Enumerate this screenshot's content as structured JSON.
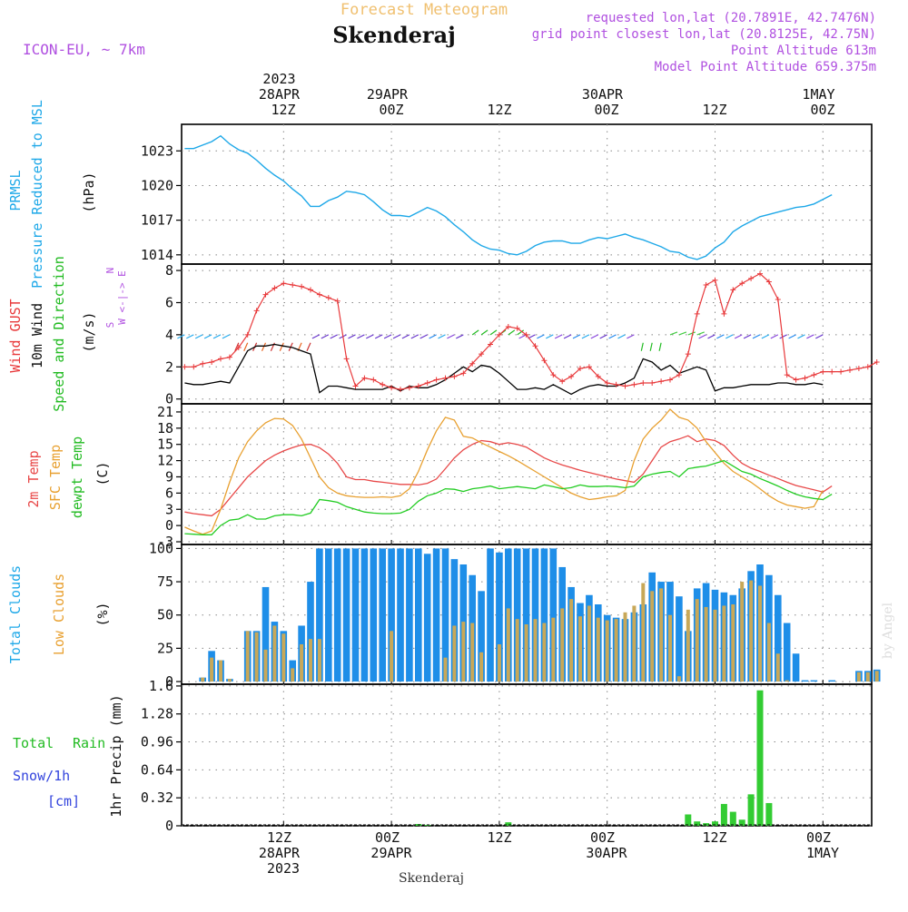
{
  "header": {
    "product": "Forecast Meteogram",
    "location": "Skenderaj",
    "model": "ICON-EU, ~ 7km",
    "requested": "requested lon,lat (20.7891E, 42.7476N)",
    "gridpoint": "grid point closest lon,lat (20.8125E, 42.75N)",
    "point_alt": "Point Altitude 613m",
    "model_alt": "Model Point Altitude 659.375m"
  },
  "time_axis": {
    "top": [
      {
        "lines": [
          "2023",
          "28APR",
          "12Z"
        ],
        "hour": 12
      },
      {
        "lines": [
          "29APR",
          "00Z"
        ],
        "hour": 24
      },
      {
        "lines": [
          "12Z"
        ],
        "hour": 36
      },
      {
        "lines": [
          "30APR",
          "00Z"
        ],
        "hour": 48
      },
      {
        "lines": [
          "12Z"
        ],
        "hour": 60
      },
      {
        "lines": [
          "1MAY",
          "00Z"
        ],
        "hour": 72
      }
    ],
    "bottom": [
      {
        "lines": [
          "12Z",
          "28APR",
          "2023"
        ],
        "hour": 12
      },
      {
        "lines": [
          "00Z",
          "29APR"
        ],
        "hour": 24
      },
      {
        "lines": [
          "12Z"
        ],
        "hour": 36
      },
      {
        "lines": [
          "00Z",
          "30APR"
        ],
        "hour": 48
      },
      {
        "lines": [
          "12Z"
        ],
        "hour": 60
      },
      {
        "lines": [
          "00Z",
          "1MAY"
        ],
        "hour": 72
      }
    ],
    "footer": "Skenderaj",
    "credit": "by Angel"
  },
  "panel_labels": {
    "pressure": {
      "a": "PRMSL",
      "b": "Pressure Reduced to MSL",
      "unit": "(hPa)"
    },
    "wind": {
      "a": "Wind GUST",
      "b": "10m Wind",
      "c": "Speed and Direction",
      "unit": "(m/s)",
      "compass_ns": "N",
      "compass_ew": "W <-|-> E",
      "compass_s": "S"
    },
    "temp": {
      "a": "2m Temp",
      "b": "SFC Temp",
      "c": "dewpt Temp",
      "unit": "(C)"
    },
    "clouds": {
      "a": "Total Clouds",
      "b": "Low Clouds",
      "unit": "(%)"
    },
    "precip": {
      "a": "Total",
      "a2": "Rain",
      "b": "Snow/1h",
      "c": "[cm]",
      "unit": "1hr Precip (mm)"
    }
  },
  "colors": {
    "pressure": "#1ea8e8",
    "gust": "#e8383a",
    "wind": "#000000",
    "t2m": "#e84848",
    "sfc": "#e8a030",
    "dew": "#22cc22",
    "total_cloud": "#1e8ee8",
    "low_cloud": "#c8a858",
    "rain": "#33cc33",
    "snow": "#3344dd",
    "title": "#f0c070",
    "meta": "#b050e0",
    "grid": "#888888"
  },
  "chart_data": [
    {
      "type": "line",
      "id": "pressure",
      "ylabel": "(hPa)",
      "ylim": [
        1013.2,
        1025.3
      ],
      "yticks": [
        1014,
        1017,
        1020,
        1023
      ],
      "x_hours_start": 1,
      "series": [
        {
          "name": "PRMSL",
          "values": [
            1023.2,
            1023.2,
            1023.5,
            1023.8,
            1024.3,
            1023.6,
            1023.1,
            1022.8,
            1022.2,
            1021.5,
            1020.9,
            1020.4,
            1019.7,
            1019.1,
            1018.2,
            1018.2,
            1018.7,
            1019.0,
            1019.5,
            1019.4,
            1019.2,
            1018.6,
            1017.9,
            1017.4,
            1017.4,
            1017.3,
            1017.7,
            1018.1,
            1017.8,
            1017.3,
            1016.6,
            1016.0,
            1015.3,
            1014.8,
            1014.5,
            1014.4,
            1014.1,
            1014.0,
            1014.3,
            1014.8,
            1015.1,
            1015.2,
            1015.2,
            1015.0,
            1015.0,
            1015.3,
            1015.5,
            1015.4,
            1015.6,
            1015.8,
            1015.5,
            1015.3,
            1015.0,
            1014.7,
            1014.3,
            1014.2,
            1013.8,
            1013.6,
            1013.9,
            1014.6,
            1015.1,
            1016.0,
            1016.5,
            1016.9,
            1017.3,
            1017.5,
            1017.7,
            1017.9,
            1018.1,
            1018.2,
            1018.4,
            1018.8,
            1019.2
          ]
        }
      ]
    },
    {
      "type": "line",
      "id": "wind",
      "ylabel": "(m/s)",
      "ylim": [
        -0.3,
        8.4
      ],
      "yticks": [
        0,
        2,
        4,
        6,
        8
      ],
      "x_hours_start": 1,
      "series": [
        {
          "name": "Wind GUST",
          "values": [
            2.0,
            2.0,
            2.2,
            2.3,
            2.5,
            2.6,
            3.2,
            4.0,
            5.5,
            6.5,
            6.9,
            7.2,
            7.1,
            7.0,
            6.8,
            6.5,
            6.3,
            6.1,
            2.5,
            0.8,
            1.3,
            1.2,
            0.9,
            0.7,
            0.6,
            0.7,
            0.8,
            1.0,
            1.2,
            1.3,
            1.4,
            1.6,
            2.2,
            2.8,
            3.4,
            4.0,
            4.5,
            4.4,
            4.0,
            3.3,
            2.4,
            1.5,
            1.1,
            1.4,
            1.9,
            2.0,
            1.4,
            1.0,
            0.9,
            0.8,
            0.9,
            1.0,
            1.0,
            1.1,
            1.2,
            1.5,
            2.8,
            5.3,
            7.1,
            7.4,
            5.3,
            6.8,
            7.2,
            7.5,
            7.8,
            7.3,
            6.2,
            1.5,
            1.2,
            1.3,
            1.5,
            1.7,
            1.7,
            1.7,
            1.8,
            1.9,
            2.0,
            2.3
          ]
        },
        {
          "name": "10m Wind",
          "values": [
            1.0,
            0.9,
            0.9,
            1.0,
            1.1,
            1.0,
            2.0,
            3.0,
            3.3,
            3.3,
            3.4,
            3.3,
            3.2,
            3.0,
            2.8,
            0.4,
            0.8,
            0.8,
            0.7,
            0.6,
            0.6,
            0.6,
            0.6,
            0.8,
            0.5,
            0.8,
            0.7,
            0.7,
            0.9,
            1.2,
            1.6,
            2.0,
            1.7,
            2.1,
            2.0,
            1.6,
            1.1,
            0.6,
            0.6,
            0.7,
            0.6,
            0.9,
            0.6,
            0.3,
            0.6,
            0.8,
            0.9,
            0.8,
            0.8,
            1.0,
            1.3,
            2.5,
            2.3,
            1.8,
            2.1,
            1.6,
            1.8,
            2.0,
            1.8,
            0.5,
            0.7,
            0.7,
            0.8,
            0.9,
            0.9,
            0.9,
            1.0,
            1.0,
            0.9,
            0.9,
            1.0,
            0.9
          ]
        },
        {
          "name": "Speed and Direction",
          "values": [
            4,
            4,
            4,
            4,
            4,
            4,
            3.5,
            3.5,
            3.5,
            3.5,
            3.5,
            3.5,
            3.5,
            3.5,
            3.5,
            4,
            4,
            4,
            4,
            4,
            4,
            4,
            4,
            4,
            4,
            4,
            4,
            4,
            4,
            4,
            4,
            4,
            4,
            4,
            4,
            4,
            4,
            4,
            4,
            4,
            4,
            4,
            4,
            4,
            4,
            4,
            4,
            4,
            4,
            4,
            4,
            3.5,
            3.5,
            3.5,
            4,
            4,
            4,
            4,
            4,
            4,
            4,
            4,
            4,
            4,
            4,
            4,
            4,
            4,
            4,
            4,
            4,
            4
          ]
        }
      ]
    },
    {
      "type": "line",
      "id": "temperature",
      "ylabel": "(C)",
      "ylim": [
        -3.5,
        22.5
      ],
      "yticks": [
        -3,
        0,
        3,
        6,
        9,
        12,
        15,
        18,
        21
      ],
      "x_hours_start": 1,
      "series": [
        {
          "name": "2m Temp",
          "values": [
            2.5,
            2.2,
            2.0,
            1.8,
            3.0,
            5.0,
            7.0,
            9.0,
            10.5,
            12.0,
            13.0,
            13.8,
            14.4,
            14.9,
            15.0,
            14.4,
            13.2,
            11.5,
            9.0,
            8.5,
            8.5,
            8.2,
            8.0,
            7.8,
            7.6,
            7.6,
            7.5,
            7.8,
            8.6,
            10.5,
            12.5,
            14.0,
            15.0,
            15.7,
            15.5,
            15.0,
            15.3,
            15.0,
            14.5,
            13.5,
            12.5,
            11.8,
            11.2,
            10.7,
            10.2,
            9.8,
            9.4,
            9.0,
            8.6,
            8.3,
            8.0,
            9.5,
            12.0,
            14.5,
            15.5,
            16.0,
            16.6,
            15.5,
            16.0,
            15.7,
            14.8,
            13.0,
            11.5,
            10.6,
            10.0,
            9.3,
            8.7,
            8.0,
            7.4,
            7.0,
            6.6,
            6.2,
            7.3
          ]
        },
        {
          "name": "SFC Temp",
          "values": [
            -0.3,
            -1.0,
            -1.6,
            -1.0,
            3.0,
            8.0,
            12.5,
            15.5,
            17.5,
            19.0,
            19.8,
            19.7,
            18.5,
            16.0,
            12.5,
            9.0,
            7.0,
            6.0,
            5.5,
            5.3,
            5.2,
            5.2,
            5.3,
            5.2,
            5.5,
            6.8,
            10.0,
            14.0,
            17.5,
            20.0,
            19.5,
            16.5,
            16.2,
            15.3,
            14.5,
            13.7,
            12.9,
            12.0,
            11.0,
            10.0,
            9.0,
            8.0,
            7.0,
            6.0,
            5.3,
            4.8,
            5.0,
            5.3,
            5.5,
            6.5,
            12.0,
            16.0,
            18.0,
            19.5,
            21.5,
            20.0,
            19.5,
            18.0,
            15.5,
            13.5,
            11.5,
            10.0,
            9.0,
            8.0,
            6.8,
            5.5,
            4.5,
            3.8,
            3.5,
            3.2,
            3.5,
            6.5
          ]
        },
        {
          "name": "dewpt Temp",
          "values": [
            -1.5,
            -1.6,
            -1.7,
            -1.7,
            0,
            1.0,
            1.2,
            2.0,
            1.2,
            1.2,
            1.8,
            2.0,
            2.0,
            1.8,
            2.3,
            4.8,
            4.6,
            4.3,
            3.5,
            3.0,
            2.5,
            2.3,
            2.2,
            2.2,
            2.3,
            3.0,
            4.5,
            5.5,
            6.0,
            6.8,
            6.7,
            6.3,
            6.8,
            7.0,
            7.3,
            6.8,
            7.0,
            7.2,
            7.0,
            6.8,
            7.5,
            7.2,
            6.8,
            7.0,
            7.5,
            7.2,
            7.2,
            7.3,
            7.2,
            7.0,
            7.3,
            9.0,
            9.5,
            9.8,
            10.0,
            9.0,
            10.5,
            10.8,
            11.0,
            11.5,
            12.0,
            11.0,
            10.0,
            9.5,
            8.7,
            8.0,
            7.3,
            6.5,
            5.8,
            5.3,
            5.0,
            4.8,
            5.8
          ]
        }
      ]
    },
    {
      "type": "bar",
      "id": "clouds",
      "ylabel": "(%)",
      "ylim": [
        -2,
        103
      ],
      "yticks": [
        0,
        25,
        50,
        75,
        100
      ],
      "x_hours_start": 1,
      "series": [
        {
          "name": "Total Clouds",
          "values": [
            0,
            0,
            3,
            23,
            16,
            2,
            0,
            38,
            38,
            71,
            45,
            38,
            16,
            42,
            75,
            100,
            100,
            100,
            100,
            100,
            100,
            100,
            100,
            100,
            100,
            100,
            100,
            96,
            100,
            100,
            92,
            88,
            80,
            68,
            100,
            97,
            100,
            100,
            100,
            100,
            100,
            100,
            86,
            71,
            59,
            65,
            58,
            50,
            48,
            47,
            52,
            58,
            82,
            75,
            75,
            64,
            38,
            70,
            74,
            69,
            67,
            65,
            70,
            83,
            88,
            80,
            65,
            44,
            21,
            1,
            1,
            0,
            1,
            0,
            0,
            8,
            8,
            9
          ]
        },
        {
          "name": "Low Clouds",
          "values": [
            0,
            0,
            3,
            18,
            16,
            2,
            0,
            38,
            37,
            24,
            42,
            36,
            10,
            28,
            32,
            32,
            0,
            0,
            0,
            0,
            0,
            0,
            0,
            38,
            0,
            0,
            0,
            0,
            0,
            18,
            42,
            45,
            44,
            22,
            0,
            28,
            55,
            47,
            43,
            47,
            44,
            48,
            55,
            62,
            49,
            57,
            48,
            46,
            47,
            52,
            57,
            74,
            68,
            70,
            50,
            4,
            54,
            62,
            56,
            54,
            57,
            58,
            75,
            76,
            72,
            44,
            21,
            1,
            0,
            0,
            0,
            0,
            0,
            0,
            0,
            7,
            7,
            8
          ]
        }
      ]
    },
    {
      "type": "bar",
      "id": "precipitation",
      "ylabel": "1hr Precip (mm)",
      "ylim": [
        0,
        1.62
      ],
      "yticks": [
        0,
        0.32,
        0.64,
        0.96,
        1.28,
        1.6
      ],
      "x_hours_start": 1,
      "series": [
        {
          "name": "Total Rain",
          "values": [
            0,
            0,
            0,
            0,
            0,
            0,
            0,
            0,
            0,
            0,
            0,
            0,
            0,
            0,
            0,
            0,
            0,
            0,
            0,
            0,
            0,
            0,
            0,
            0,
            0,
            0,
            0.02,
            0.01,
            0,
            0,
            0,
            0,
            0,
            0,
            0,
            0,
            0.04,
            0,
            0,
            0,
            0,
            0,
            0,
            0,
            0,
            0,
            0,
            0,
            0,
            0,
            0,
            0,
            0,
            0,
            0,
            0,
            0.13,
            0.05,
            0.03,
            0.05,
            0.25,
            0.16,
            0.07,
            0.36,
            1.55,
            0.26,
            0,
            0,
            0,
            0,
            0,
            0,
            0,
            0,
            0,
            0,
            0,
            0
          ]
        }
      ]
    }
  ]
}
